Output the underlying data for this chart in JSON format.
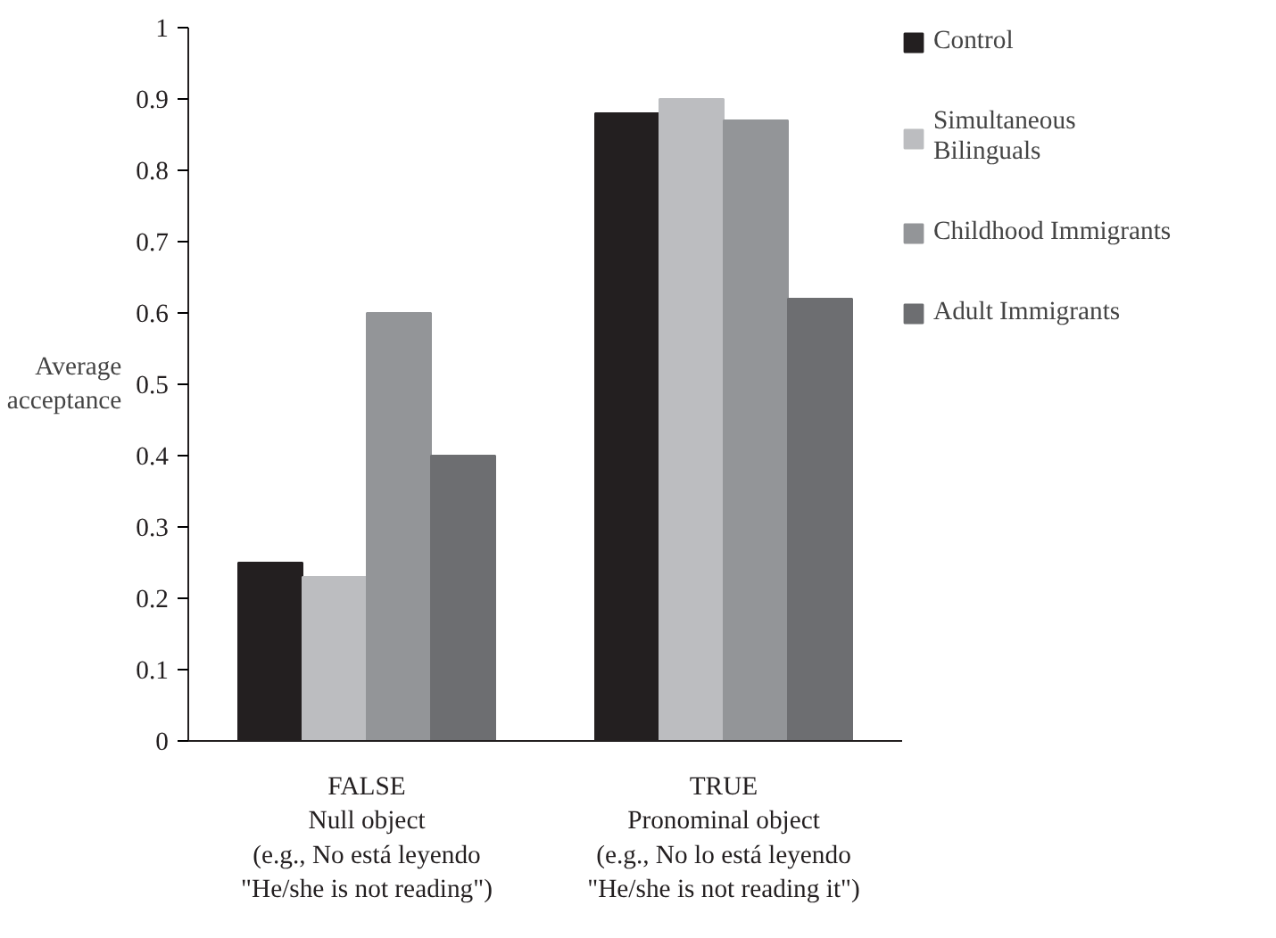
{
  "chart_data": {
    "type": "bar",
    "ylabel": "Average\nacceptance",
    "categories": [
      "FALSE\nNull object\n(e.g., No está leyendo\n\"He/she is not reading\")",
      "TRUE\nPronominal object\n(e.g., No lo está leyendo\n\"He/she is not reading it\")"
    ],
    "series": [
      {
        "name": "Control",
        "color": "#231f20",
        "values": [
          0.25,
          0.88
        ]
      },
      {
        "name": "Simultaneous\nBilinguals",
        "color": "#bcbdc0",
        "values": [
          0.23,
          0.9
        ]
      },
      {
        "name": "Childhood Immigrants",
        "color": "#939598",
        "values": [
          0.6,
          0.87
        ]
      },
      {
        "name": "Adult Immigrants",
        "color": "#6d6e71",
        "values": [
          0.4,
          0.62
        ]
      }
    ],
    "ylim": [
      0,
      1
    ],
    "yticks": [
      0,
      0.1,
      0.2,
      0.3,
      0.4,
      0.5,
      0.6,
      0.7,
      0.8,
      0.9,
      1
    ],
    "legend": "top right"
  }
}
